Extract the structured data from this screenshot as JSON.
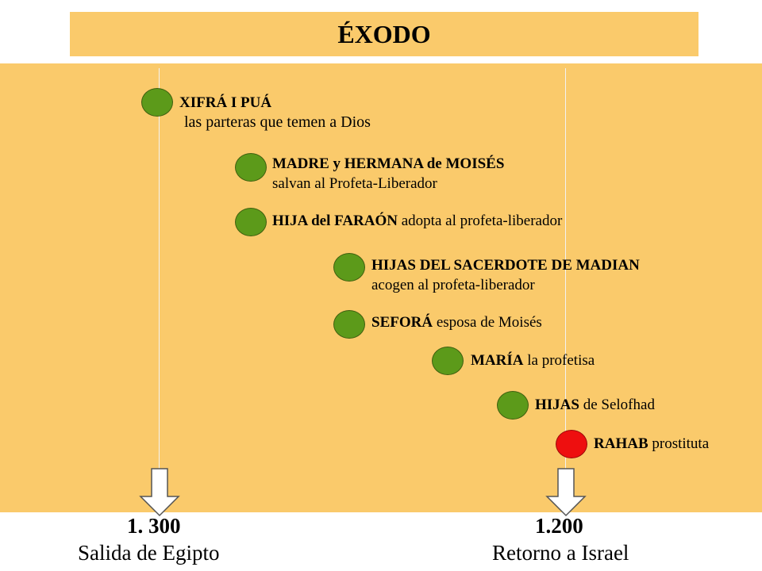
{
  "title": "ÉXODO",
  "colors": {
    "panel": "#FACA6B",
    "green_dot": "#5c9a1a",
    "red_dot": "#ee0f0f"
  },
  "events": [
    {
      "bold": "XIFRÁ I PUÁ",
      "rest": "",
      "sub": "las parteras que temen a Dios",
      "marker": "green"
    },
    {
      "bold": "MADRE y HERMANA de MOISÉS",
      "rest": "",
      "sub": "salvan al Profeta-Liberador",
      "marker": "green"
    },
    {
      "bold": "HIJA del FARAÓN",
      "rest": " adopta al profeta-liberador",
      "sub": "",
      "marker": "green"
    },
    {
      "bold": "HIJAS DEL SACERDOTE DE MADIAN",
      "rest": "",
      "sub": "acogen al profeta-liberador",
      "marker": "green"
    },
    {
      "bold": "SEFORÁ",
      "rest": " esposa de Moisés",
      "sub": "",
      "marker": "green"
    },
    {
      "bold": "MARÍA",
      "rest": " la profetisa",
      "sub": "",
      "marker": "green"
    },
    {
      "bold": "HIJAS",
      "rest": " de Selofhad",
      "sub": "",
      "marker": "green"
    },
    {
      "bold": "RAHAB",
      "rest": " prostituta",
      "sub": "",
      "marker": "red"
    }
  ],
  "endpoints": [
    {
      "date": "1. 300",
      "caption": "Salida de Egipto"
    },
    {
      "date": "1.200",
      "caption": "Retorno a Israel"
    }
  ]
}
